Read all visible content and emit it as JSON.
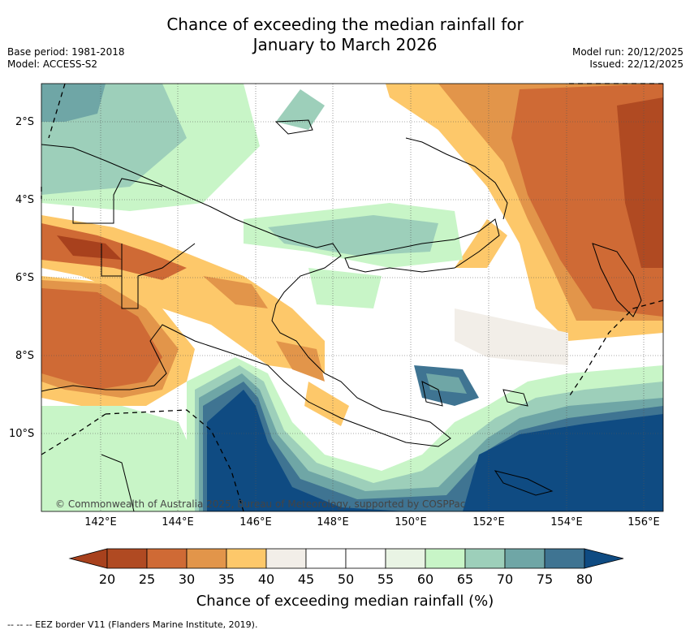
{
  "title": {
    "line1": "Chance of exceeding the median rainfall for",
    "line2": "January to March 2026"
  },
  "base_period": "Base period: 1981-2018",
  "model": "Model: ACCESS-S2",
  "model_run": "Model run: 20/12/2025",
  "issued": "Issued: 22/12/2025",
  "lat_labels": [
    "2°S",
    "4°S",
    "6°S",
    "8°S",
    "10°S"
  ],
  "lon_labels": [
    "142°E",
    "144°E",
    "146°E",
    "148°E",
    "150°E",
    "152°E",
    "154°E",
    "156°E"
  ],
  "copyright": "© Commonwealth of Australia 2025, Bureau of Meteorology, supported by COSPPac",
  "colorbar": {
    "ticks": [
      "20",
      "25",
      "30",
      "35",
      "40",
      "45",
      "50",
      "55",
      "60",
      "65",
      "70",
      "75",
      "80"
    ],
    "colors": [
      "#a8411d",
      "#b04a22",
      "#cf6a35",
      "#e2954a",
      "#fdc86a",
      "#f2eee8",
      "#ffffff",
      "#ffffff",
      "#e9f4e4",
      "#c8f5c7",
      "#9dcfba",
      "#6fa6a6",
      "#3f7492",
      "#0f4b82"
    ],
    "label": "Chance of exceeding median rainfall (%)"
  },
  "legend": "--  --  -- EEZ border V11 (Flanders Marine Institute, 2019)."
}
